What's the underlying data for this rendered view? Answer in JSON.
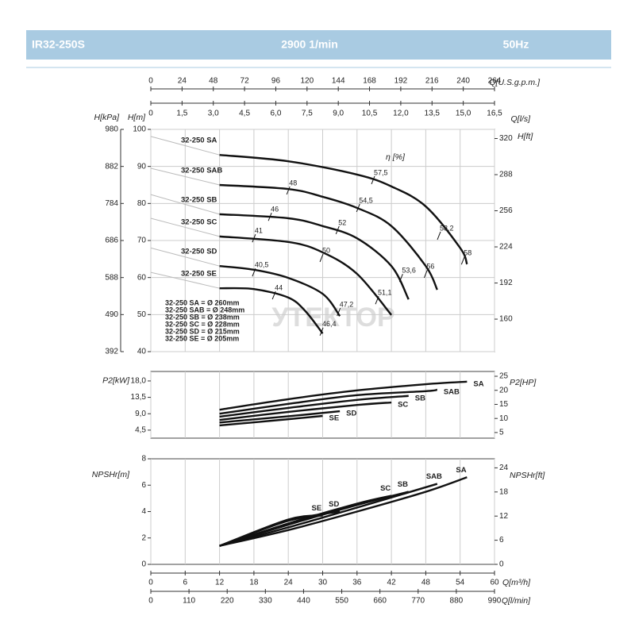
{
  "header": {
    "model": "IR32-250S",
    "speed": "2900 1/min",
    "frequency": "50Hz"
  },
  "watermark": "УТЕКТОР",
  "flow_axes": {
    "gpm": {
      "label": "Q[U.S.g.p.m.]",
      "lim": [
        0,
        264
      ],
      "ticks": [
        0,
        24,
        48,
        72,
        96,
        120,
        144,
        168,
        192,
        216,
        240,
        264
      ]
    },
    "ls": {
      "label": "Q[l/s]",
      "lim": [
        0,
        16.5
      ],
      "ticks": [
        0,
        {
          "value": 1.5,
          "label": "1,5"
        },
        {
          "value": 3,
          "label": "3,0"
        },
        {
          "value": 4.5,
          "label": "4,5"
        },
        {
          "value": 6,
          "label": "6,0"
        },
        {
          "value": 7.5,
          "label": "7,5"
        },
        {
          "value": 9,
          "label": "9,0"
        },
        {
          "value": 10.5,
          "label": "10,5"
        },
        {
          "value": 12,
          "label": "12,0"
        },
        {
          "value": 13.5,
          "label": "13,5"
        },
        {
          "value": 15,
          "label": "15,0"
        },
        {
          "value": 16.5,
          "label": "16,5"
        }
      ]
    },
    "m3h": {
      "label": "Q[m³/h]",
      "lim": [
        0,
        60
      ],
      "ticks": [
        0,
        6,
        12,
        18,
        24,
        30,
        36,
        42,
        48,
        54,
        60
      ]
    },
    "lmin": {
      "label": "Q[l/min]",
      "lim": [
        0,
        990
      ],
      "ticks": [
        0,
        110,
        220,
        330,
        440,
        550,
        660,
        770,
        880,
        990
      ]
    }
  },
  "chart_data": [
    {
      "type": "line",
      "y_label": "H[m]",
      "y2_label": "H[ft]",
      "y3_label": "H[kPa]",
      "xlim": [
        0,
        60
      ],
      "ylim": [
        40,
        100
      ],
      "yticks": [
        40,
        50,
        60,
        70,
        80,
        90,
        100
      ],
      "y2lim": [
        131.2,
        328.1
      ],
      "y2ticks": [
        160,
        192,
        224,
        256,
        288,
        320
      ],
      "y3lim": [
        392,
        980
      ],
      "y3ticks": [
        392,
        490,
        588,
        686,
        784,
        882,
        980
      ],
      "grid": true,
      "series": [
        {
          "color": "#bbbbbb",
          "x": [
            0,
            12
          ],
          "values": [
            98.1,
            93.1
          ]
        },
        {
          "color": "#bbbbbb",
          "x": [
            0,
            12
          ],
          "values": [
            89.5,
            85.0
          ]
        },
        {
          "color": "#bbbbbb",
          "x": [
            0,
            12
          ],
          "values": [
            82.4,
            77.1
          ]
        },
        {
          "color": "#bbbbbb",
          "x": [
            0,
            12
          ],
          "values": [
            76.0,
            71.1
          ]
        },
        {
          "color": "#bbbbbb",
          "x": [
            0,
            12
          ],
          "values": [
            68.0,
            63.1
          ]
        },
        {
          "color": "#bbbbbb",
          "x": [
            0,
            12
          ],
          "values": [
            61.4,
            57.1
          ]
        },
        {
          "name": "32-250 SA",
          "color": "#111111",
          "x": [
            12,
            24,
            36,
            42,
            48,
            54,
            55.2
          ],
          "values": [
            93.1,
            91.4,
            87.8,
            84.6,
            79.2,
            68.0,
            63.6
          ]
        },
        {
          "name": "32-250 SAB",
          "color": "#111111",
          "x": [
            12,
            24,
            30,
            36,
            42,
            48,
            50
          ],
          "values": [
            85.0,
            83.9,
            81.8,
            78.8,
            73.9,
            63.1,
            56.7
          ]
        },
        {
          "name": "32-250 SB",
          "color": "#111111",
          "x": [
            12,
            24,
            30,
            36,
            42,
            45
          ],
          "values": [
            77.1,
            76.0,
            73.9,
            70.6,
            63.1,
            54.1
          ]
        },
        {
          "name": "32-250 SC",
          "color": "#111111",
          "x": [
            12,
            24,
            30,
            36,
            42
          ],
          "values": [
            71.1,
            69.6,
            66.8,
            61.0,
            49.9
          ]
        },
        {
          "name": "32-250 SD",
          "color": "#111111",
          "x": [
            12,
            18,
            24,
            30,
            33
          ],
          "values": [
            63.1,
            62.1,
            59.9,
            55.6,
            49.6
          ]
        },
        {
          "name": "32-250 SE",
          "color": "#111111",
          "x": [
            12,
            18,
            24,
            27,
            30
          ],
          "values": [
            57.1,
            56.9,
            54.6,
            50.9,
            44.9
          ]
        }
      ],
      "efficiency_title": "η [%]",
      "efficiency": [
        {
          "x": 24,
          "y": 83.5,
          "value": 48,
          "label": "48"
        },
        {
          "x": 38.8,
          "y": 86.3,
          "value": 57.5,
          "label": "57,5"
        },
        {
          "x": 20.8,
          "y": 76.4,
          "value": 46,
          "label": "46"
        },
        {
          "x": 36.2,
          "y": 78.8,
          "value": 54.5,
          "label": "54,5"
        },
        {
          "x": 18,
          "y": 70.6,
          "value": 41,
          "label": "41"
        },
        {
          "x": 32.6,
          "y": 72.8,
          "value": 52,
          "label": "52"
        },
        {
          "x": 29.8,
          "y": 65.3,
          "value": 50,
          "label": "50"
        },
        {
          "x": 18,
          "y": 61.4,
          "value": 40.5,
          "label": "40,5"
        },
        {
          "x": 39.5,
          "y": 53.9,
          "value": 51.1,
          "label": "51,1"
        },
        {
          "x": 21.5,
          "y": 55.2,
          "value": 44,
          "label": "44"
        },
        {
          "x": 32.8,
          "y": 50.7,
          "value": 47.2,
          "label": "47,2"
        },
        {
          "x": 29.8,
          "y": 45.4,
          "value": 46.4,
          "label": "46,4"
        },
        {
          "x": 43.7,
          "y": 59.9,
          "value": 53.6,
          "label": "53,6"
        },
        {
          "x": 48,
          "y": 61.0,
          "value": 56,
          "label": "56"
        },
        {
          "x": 50.3,
          "y": 71.3,
          "value": 58.2,
          "label": "58,2"
        },
        {
          "x": 54.5,
          "y": 64.6,
          "value": 58,
          "label": "58"
        }
      ],
      "diameters": [
        "32-250 SA = Ø 260mm",
        "32-250 SAB = Ø 248mm",
        "32-250 SB = Ø 238mm",
        "32-250 SC = Ø 228mm",
        "32-250 SD = Ø 215mm",
        "32-250 SE = Ø 205mm"
      ]
    },
    {
      "type": "line",
      "y_label": "P2[kW]",
      "y2_label": "P2[HP]",
      "xlim": [
        0,
        60
      ],
      "ylim": [
        2.3,
        20.6
      ],
      "yticks": [
        {
          "value": 4.5,
          "label": "4,5"
        },
        {
          "value": 9,
          "label": "9,0"
        },
        {
          "value": 13.5,
          "label": "13,5"
        },
        {
          "value": 18,
          "label": "18,0"
        }
      ],
      "y2lim": [
        3.0,
        26.7
      ],
      "y2ticks": [
        5,
        10,
        15,
        20,
        25
      ],
      "grid": true,
      "series": [
        {
          "name": "SA",
          "color": "#111111",
          "x": [
            12,
            24,
            36,
            48,
            55.2
          ],
          "values": [
            10.1,
            13.0,
            15.4,
            17.1,
            17.8
          ]
        },
        {
          "name": "SAB",
          "color": "#111111",
          "x": [
            12,
            24,
            36,
            48,
            50
          ],
          "values": [
            9.0,
            11.7,
            14.1,
            15.2,
            15.6
          ]
        },
        {
          "name": "SB",
          "color": "#111111",
          "x": [
            12,
            24,
            36,
            45
          ],
          "values": [
            8.2,
            10.6,
            12.8,
            13.9
          ]
        },
        {
          "name": "SC",
          "color": "#111111",
          "x": [
            12,
            24,
            36,
            42
          ],
          "values": [
            7.3,
            9.5,
            11.4,
            12.1
          ]
        },
        {
          "name": "SD",
          "color": "#111111",
          "x": [
            12,
            24,
            33
          ],
          "values": [
            6.6,
            8.3,
            9.7
          ]
        },
        {
          "name": "SE",
          "color": "#111111",
          "x": [
            12,
            24,
            30
          ],
          "values": [
            5.8,
            7.5,
            8.4
          ]
        }
      ]
    },
    {
      "type": "line",
      "y_label": "NPSHr[m]",
      "y2_label": "NPSHr[ft]",
      "xlim": [
        0,
        60
      ],
      "ylim": [
        0,
        8
      ],
      "yticks": [
        0,
        2,
        4,
        6,
        8
      ],
      "y2lim": [
        0,
        26.25
      ],
      "y2ticks": [
        0,
        6,
        12,
        18,
        24
      ],
      "grid": true,
      "series": [
        {
          "name": "SA",
          "color": "#111111",
          "x": [
            12,
            24,
            36,
            48,
            55.2
          ],
          "values": [
            1.4,
            2.6,
            4.0,
            5.5,
            6.6
          ]
        },
        {
          "name": "SAB",
          "color": "#111111",
          "x": [
            12,
            24,
            36,
            50
          ],
          "values": [
            1.4,
            2.8,
            4.3,
            6.1
          ]
        },
        {
          "name": "SB",
          "color": "#111111",
          "x": [
            12,
            24,
            36,
            45
          ],
          "values": [
            1.4,
            3.0,
            4.5,
            5.5
          ]
        },
        {
          "name": "SC",
          "color": "#111111",
          "x": [
            12,
            24,
            36,
            42
          ],
          "values": [
            1.4,
            3.1,
            4.6,
            5.2
          ]
        },
        {
          "name": "SD",
          "color": "#111111",
          "x": [
            12,
            24,
            33
          ],
          "values": [
            1.4,
            3.3,
            4.0
          ]
        },
        {
          "name": "SE",
          "color": "#111111",
          "x": [
            12,
            24,
            30
          ],
          "values": [
            1.4,
            3.4,
            3.7
          ]
        }
      ]
    }
  ]
}
